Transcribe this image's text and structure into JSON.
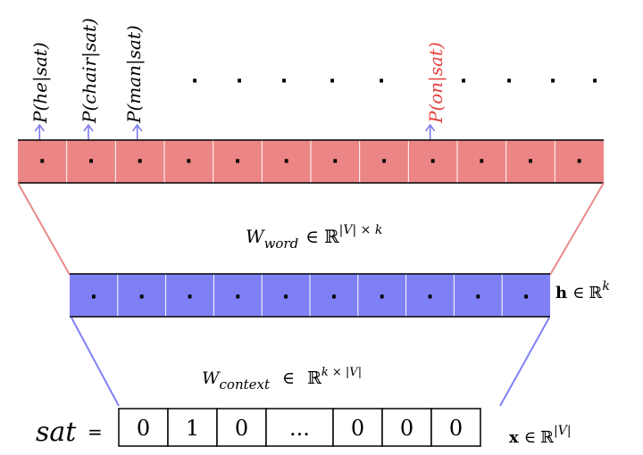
{
  "output_labels": [
    {
      "text": "P(he|sat)",
      "color": "#000000"
    },
    {
      "text": "P(chair|sat)",
      "color": "#000000"
    },
    {
      "text": "P(man|sat)",
      "color": "#000000"
    },
    {
      "text": "P(on|sat)",
      "color": "#e84040"
    }
  ],
  "ellipsis_dot": "·",
  "output_layer": {
    "cell_count": 12,
    "cell_symbol": "·",
    "color": "#ec8585"
  },
  "word_matrix": {
    "symbol": "W",
    "subscript": "word",
    "relation": "∈",
    "space": "ℝ",
    "superscript": "|V| × k"
  },
  "hidden_layer": {
    "cell_count": 10,
    "cell_symbol": "·",
    "color": "#8080f5",
    "label_vector": "h",
    "label_relation": "∈",
    "label_space": "ℝ",
    "label_superscript": "k"
  },
  "context_matrix": {
    "symbol": "W",
    "subscript": "context",
    "relation": "∈",
    "space": "ℝ",
    "superscript": "k × |V|"
  },
  "input": {
    "word": "sat",
    "equals": "=",
    "values": [
      "0",
      "1",
      "0",
      "...",
      "0",
      "0",
      "0"
    ],
    "label_vector": "x",
    "label_relation": "∈",
    "label_space": "ℝ",
    "label_superscript": "|V|"
  },
  "colors": {
    "red_layer": "#ec8585",
    "blue_layer": "#8080f5",
    "red_line": "#e88a8a",
    "blue_line": "#8080f5",
    "arrow_blue": "#7070e8",
    "highlight_red": "#e84040"
  }
}
